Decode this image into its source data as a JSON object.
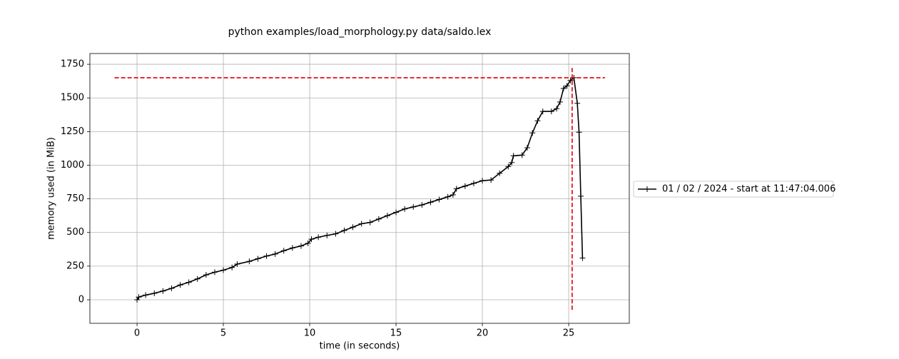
{
  "chart_data": {
    "type": "line",
    "title": "python examples/load_morphology.py data/saldo.lex",
    "xlabel": "time (in seconds)",
    "ylabel": "memory used (in MiB)",
    "xlim": [
      -2.73,
      28.51
    ],
    "ylim": [
      -175,
      1830
    ],
    "xticks": [
      0,
      5,
      10,
      15,
      20,
      25
    ],
    "yticks": [
      0,
      250,
      500,
      750,
      1000,
      1250,
      1500,
      1750
    ],
    "grid": true,
    "legend": "outside right",
    "series": [
      {
        "name": "01 / 02 / 2024 - start at 11:47:04.006",
        "color": "#000000",
        "x": [
          0,
          0.1,
          0.5,
          1,
          1.5,
          2,
          2.5,
          3,
          3.5,
          4,
          4.5,
          5,
          5.5,
          5.8,
          6.5,
          7,
          7.5,
          8,
          8.5,
          9,
          9.5,
          9.9,
          10.1,
          10.5,
          11,
          11.5,
          12,
          12.5,
          13,
          13.5,
          14,
          14.5,
          15,
          15.5,
          16,
          16.5,
          17,
          17.5,
          18,
          18.3,
          18.5,
          19,
          19.5,
          20,
          20.5,
          21,
          21.5,
          21.7,
          21.8,
          22.3,
          22.6,
          22.9,
          23.2,
          23.5,
          24,
          24.3,
          24.5,
          24.7,
          24.9,
          25.1,
          25.3,
          25.5,
          25.6,
          25.7,
          25.8
        ],
        "values": [
          0,
          20,
          35,
          48,
          65,
          85,
          110,
          130,
          155,
          185,
          205,
          220,
          240,
          265,
          285,
          305,
          325,
          340,
          365,
          385,
          400,
          420,
          450,
          465,
          478,
          490,
          515,
          540,
          565,
          575,
          600,
          625,
          650,
          675,
          690,
          705,
          725,
          745,
          765,
          780,
          825,
          845,
          865,
          885,
          890,
          940,
          990,
          1020,
          1070,
          1075,
          1130,
          1240,
          1330,
          1400,
          1400,
          1420,
          1470,
          1570,
          1590,
          1630,
          1650,
          1460,
          1245,
          770,
          310
        ]
      }
    ],
    "peak_lines": {
      "color": "#dd0000",
      "y": 1650,
      "xmin": -1.3,
      "xmax": 27.1,
      "x": 25.2,
      "ymin": -75,
      "ymax": 1730
    }
  }
}
